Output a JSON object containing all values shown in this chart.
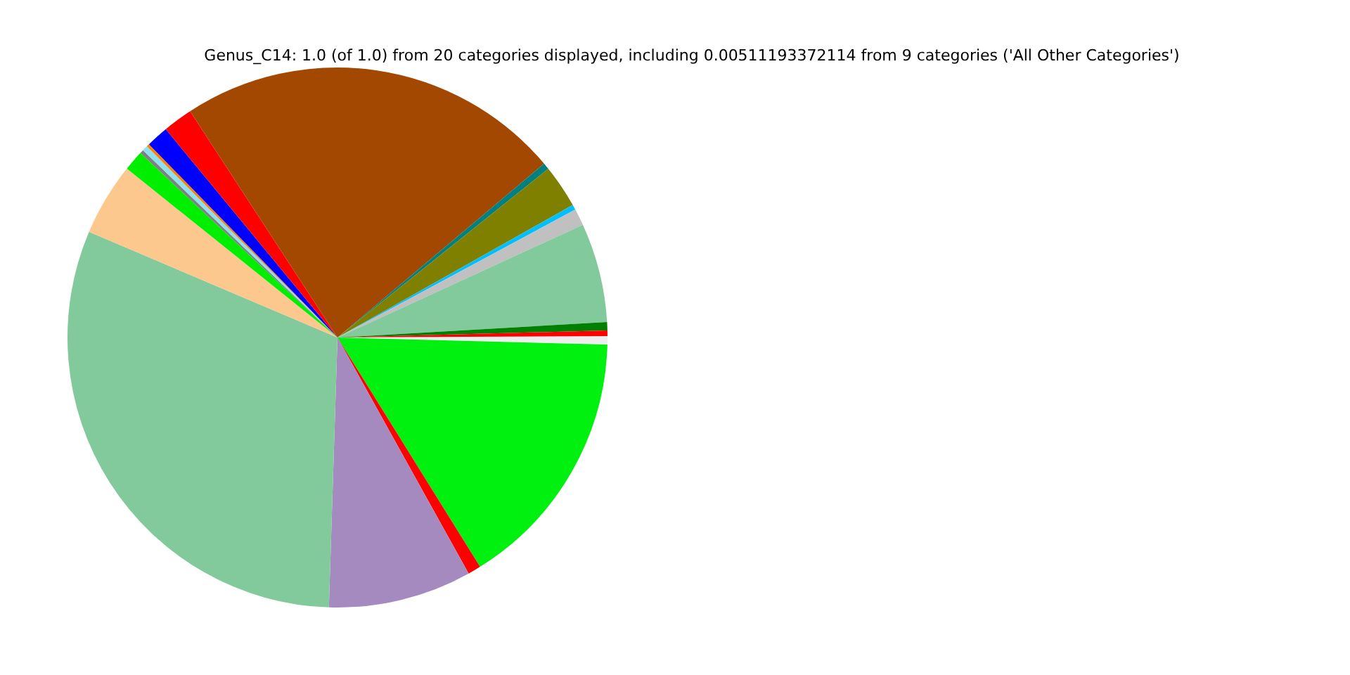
{
  "chart_data": {
    "type": "pie",
    "title": "Genus_C14: 1.0 (of 1.0) from 20 categories displayed, including 0.00511193372114 from 9 categories ('All Other Categories')",
    "categories": [
      null,
      null,
      null,
      null,
      null,
      null,
      null,
      null,
      null,
      null,
      null,
      null,
      null,
      null,
      null,
      null,
      null,
      null,
      null,
      null
    ],
    "values": [
      0.5,
      15.73,
      0.78,
      8.58,
      30.89,
      4.36,
      1.22,
      0.22,
      0.33,
      0.17,
      1.33,
      1.78,
      23.06,
      0.39,
      2.58,
      0.31,
      1.0,
      5.94,
      0.5,
      0.33
    ],
    "colors": [
      "#eeeeee",
      "#00f010",
      "#ff0000",
      "#a48abe",
      "#82c99c",
      "#fcc88e",
      "#00ee00",
      "#808080",
      "#8ce0f0",
      "#ff8000",
      "#0000ff",
      "#ff0000",
      "#a34800",
      "#008080",
      "#808000",
      "#00bfff",
      "#c0c0c0",
      "#82c99c",
      "#008000",
      "#ff0000"
    ]
  }
}
